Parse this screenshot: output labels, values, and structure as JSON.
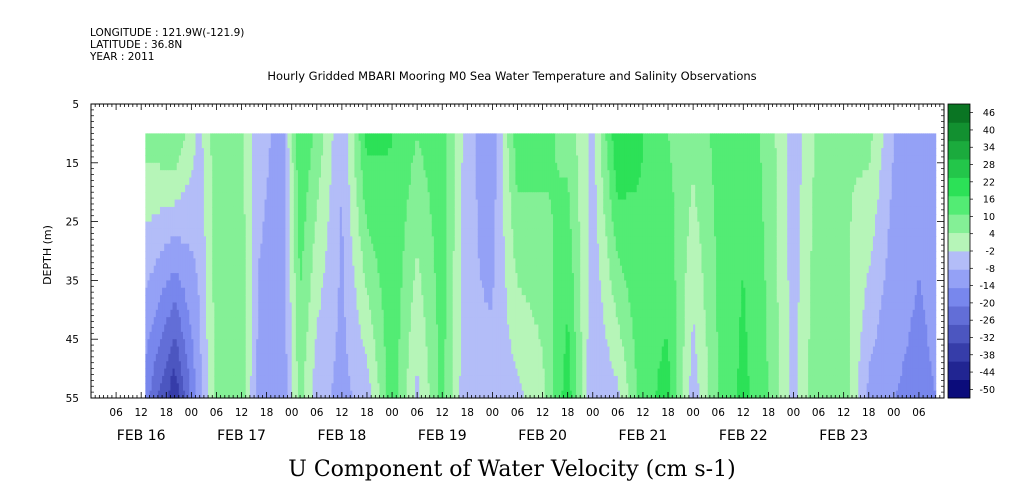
{
  "header": {
    "longitude": "LONGITUDE : 121.9W(-121.9)",
    "latitude": "LATITUDE : 36.8N",
    "year": "YEAR : 2011"
  },
  "chart_data": {
    "type": "heatmap",
    "title": "Hourly Gridded MBARI Mooring M0 Sea Water Temperature and Salinity Observations",
    "xlabel": "U Component of Water Velocity (cm s-1)",
    "ylabel": "DEPTH (m)",
    "y_ticks": [
      "5",
      "15",
      "25",
      "35",
      "45",
      "55"
    ],
    "y_tick_values": [
      5,
      15,
      25,
      35,
      45,
      55
    ],
    "ylim": [
      55,
      5
    ],
    "x_hour_ticks": [
      "06",
      "12",
      "18",
      "00",
      "06",
      "12",
      "18",
      "00",
      "06",
      "12",
      "18",
      "00",
      "06",
      "12",
      "18",
      "00",
      "06",
      "12",
      "18",
      "00",
      "06",
      "12",
      "18",
      "00",
      "06",
      "12",
      "18",
      "00",
      "06",
      "12",
      "18",
      "00",
      "06"
    ],
    "x_hour_values": [
      6,
      12,
      18,
      24,
      30,
      36,
      42,
      48,
      54,
      60,
      66,
      72,
      78,
      84,
      90,
      96,
      102,
      108,
      114,
      120,
      126,
      132,
      138,
      144,
      150,
      156,
      162,
      168,
      174,
      180,
      186,
      192,
      198
    ],
    "x_date_labels": [
      {
        "label": "FEB 16",
        "hour": 12
      },
      {
        "label": "FEB 17",
        "hour": 36
      },
      {
        "label": "FEB 18",
        "hour": 60
      },
      {
        "label": "FEB 19",
        "hour": 84
      },
      {
        "label": "FEB 20",
        "hour": 108
      },
      {
        "label": "FEB 21",
        "hour": 132
      },
      {
        "label": "FEB 22",
        "hour": 156
      },
      {
        "label": "FEB 23",
        "hour": 180
      }
    ],
    "xlim_hours": [
      0,
      204
    ],
    "data_start_hour": 13,
    "data_end_hour": 202,
    "data_top_depth": 10,
    "colorbar": {
      "levels": [
        -50,
        -44,
        -38,
        -32,
        -26,
        -20,
        -14,
        -8,
        -2,
        4,
        10,
        16,
        22,
        28,
        34,
        40,
        46
      ],
      "labels": [
        "46",
        "40",
        "34",
        "28",
        "22",
        "16",
        "10",
        "4",
        "-2",
        "-8",
        "-14",
        "-20",
        "-26",
        "-32",
        "-38",
        "-44",
        "-50"
      ],
      "negative_color": "#7f8ff5",
      "positive_color": "#2ee85a"
    },
    "velocity_profile_pattern": [
      {
        "hour": 13,
        "surface": 6,
        "bottom": -18
      },
      {
        "hour": 20,
        "surface": 10,
        "bottom": -38
      },
      {
        "hour": 26,
        "surface": -4,
        "bottom": -10
      },
      {
        "hour": 30,
        "surface": 8,
        "bottom": 6
      },
      {
        "hour": 36,
        "surface": 6,
        "bottom": 8
      },
      {
        "hour": 40,
        "surface": -6,
        "bottom": -10
      },
      {
        "hour": 46,
        "surface": -10,
        "bottom": -12
      },
      {
        "hour": 50,
        "surface": 16,
        "bottom": 6
      },
      {
        "hour": 54,
        "surface": 8,
        "bottom": -6
      },
      {
        "hour": 60,
        "surface": -8,
        "bottom": -10
      },
      {
        "hour": 66,
        "surface": 18,
        "bottom": -6
      },
      {
        "hour": 72,
        "surface": 16,
        "bottom": 14
      },
      {
        "hour": 78,
        "surface": 10,
        "bottom": -4
      },
      {
        "hour": 84,
        "surface": 14,
        "bottom": 12
      },
      {
        "hour": 90,
        "surface": -6,
        "bottom": -8
      },
      {
        "hour": 96,
        "surface": -12,
        "bottom": -6
      },
      {
        "hour": 102,
        "surface": 14,
        "bottom": -4
      },
      {
        "hour": 108,
        "surface": 12,
        "bottom": 2
      },
      {
        "hour": 114,
        "surface": 8,
        "bottom": 20
      },
      {
        "hour": 120,
        "surface": -4,
        "bottom": -8
      },
      {
        "hour": 126,
        "surface": 22,
        "bottom": -4
      },
      {
        "hour": 132,
        "surface": 16,
        "bottom": 14
      },
      {
        "hour": 138,
        "surface": 10,
        "bottom": 18
      },
      {
        "hour": 144,
        "surface": 6,
        "bottom": -6
      },
      {
        "hour": 150,
        "surface": 12,
        "bottom": 10
      },
      {
        "hour": 156,
        "surface": 14,
        "bottom": 18
      },
      {
        "hour": 162,
        "surface": 8,
        "bottom": 10
      },
      {
        "hour": 168,
        "surface": -6,
        "bottom": -4
      },
      {
        "hour": 174,
        "surface": 6,
        "bottom": 10
      },
      {
        "hour": 180,
        "surface": 4,
        "bottom": 8
      },
      {
        "hour": 186,
        "surface": 6,
        "bottom": -10
      },
      {
        "hour": 192,
        "surface": -8,
        "bottom": -14
      },
      {
        "hour": 198,
        "surface": -12,
        "bottom": -16
      },
      {
        "hour": 202,
        "surface": -10,
        "bottom": -14
      }
    ]
  }
}
